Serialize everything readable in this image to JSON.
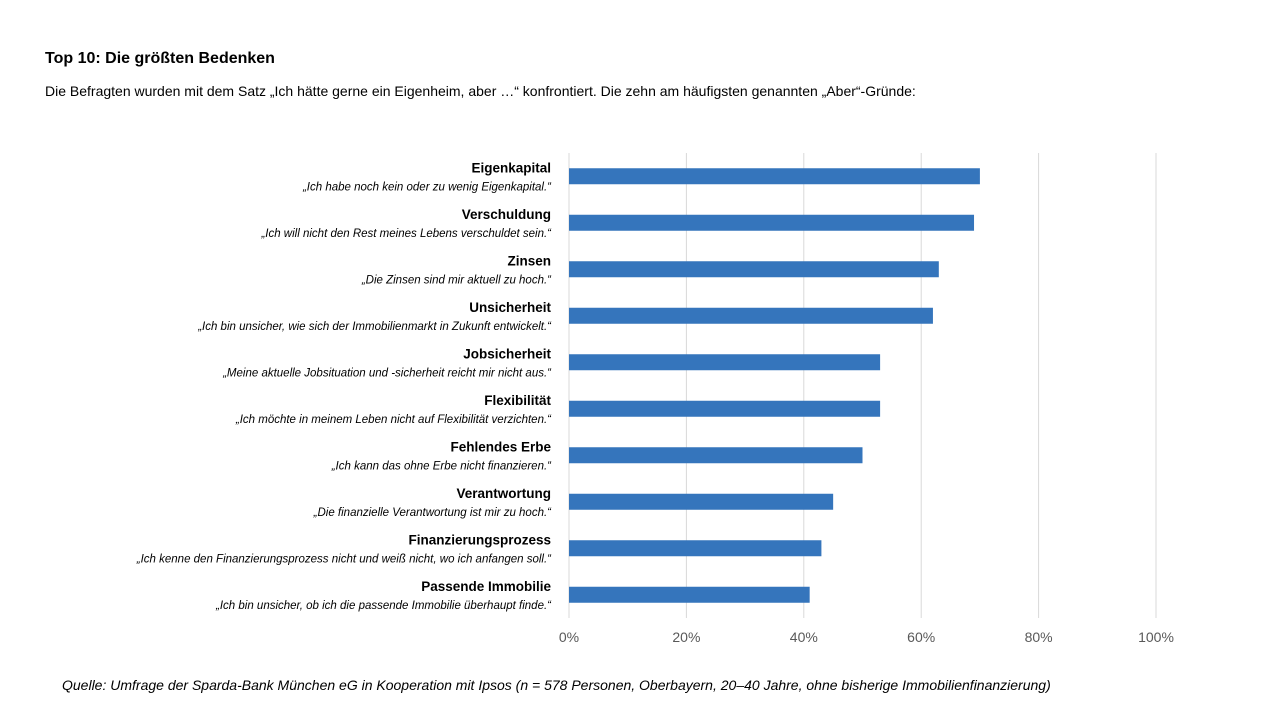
{
  "title": "Top 10: Die größten Bedenken",
  "subtitle": "Die Befragten wurden mit dem Satz „Ich hätte gerne ein Eigenheim, aber …“ konfrontiert. Die zehn am häufigsten genannten „Aber“-Gründe:",
  "source": "Quelle: Umfrage der Sparda-Bank München eG in Kooperation mit Ipsos (n = 578 Personen, Oberbayern, 20–40 Jahre, ohne bisherige Immobilienfinanzierung)",
  "chart_data": {
    "type": "bar",
    "orientation": "horizontal",
    "categories": [
      "Eigenkapital",
      "Verschuldung",
      "Zinsen",
      "Unsicherheit",
      "Jobsicherheit",
      "Flexibilität",
      "Fehlendes Erbe",
      "Verantwortung",
      "Finanzierungsprozess",
      "Passende Immobilie"
    ],
    "quotes": [
      "„Ich habe noch kein oder zu wenig Eigenkapital.“",
      "„Ich will nicht den Rest meines Lebens verschuldet sein.“",
      "„Die Zinsen sind mir aktuell zu hoch.“",
      "„Ich bin unsicher, wie sich der Immobilienmarkt in Zukunft entwickelt.“",
      "„Meine aktuelle Jobsituation und -sicherheit reicht mir nicht aus.“",
      "„Ich möchte in meinem Leben nicht auf Flexibilität verzichten.“",
      "„Ich kann das ohne Erbe nicht finanzieren.“",
      "„Die finanzielle Verantwortung ist mir zu hoch.“",
      "„Ich kenne den Finanzierungsprozess nicht und weiß nicht, wo ich anfangen soll.“",
      "„Ich bin unsicher, ob ich die passende Immobilie überhaupt finde.“"
    ],
    "values": [
      70,
      69,
      63,
      62,
      53,
      53,
      50,
      45,
      43,
      41
    ],
    "xlim": [
      0,
      100
    ],
    "xticks": [
      0,
      20,
      40,
      60,
      80,
      100
    ],
    "xtick_labels": [
      "0%",
      "20%",
      "40%",
      "60%",
      "80%",
      "100%"
    ],
    "grid": true,
    "bar_color": "#3575BC",
    "grid_color": "#D9D9D9"
  }
}
